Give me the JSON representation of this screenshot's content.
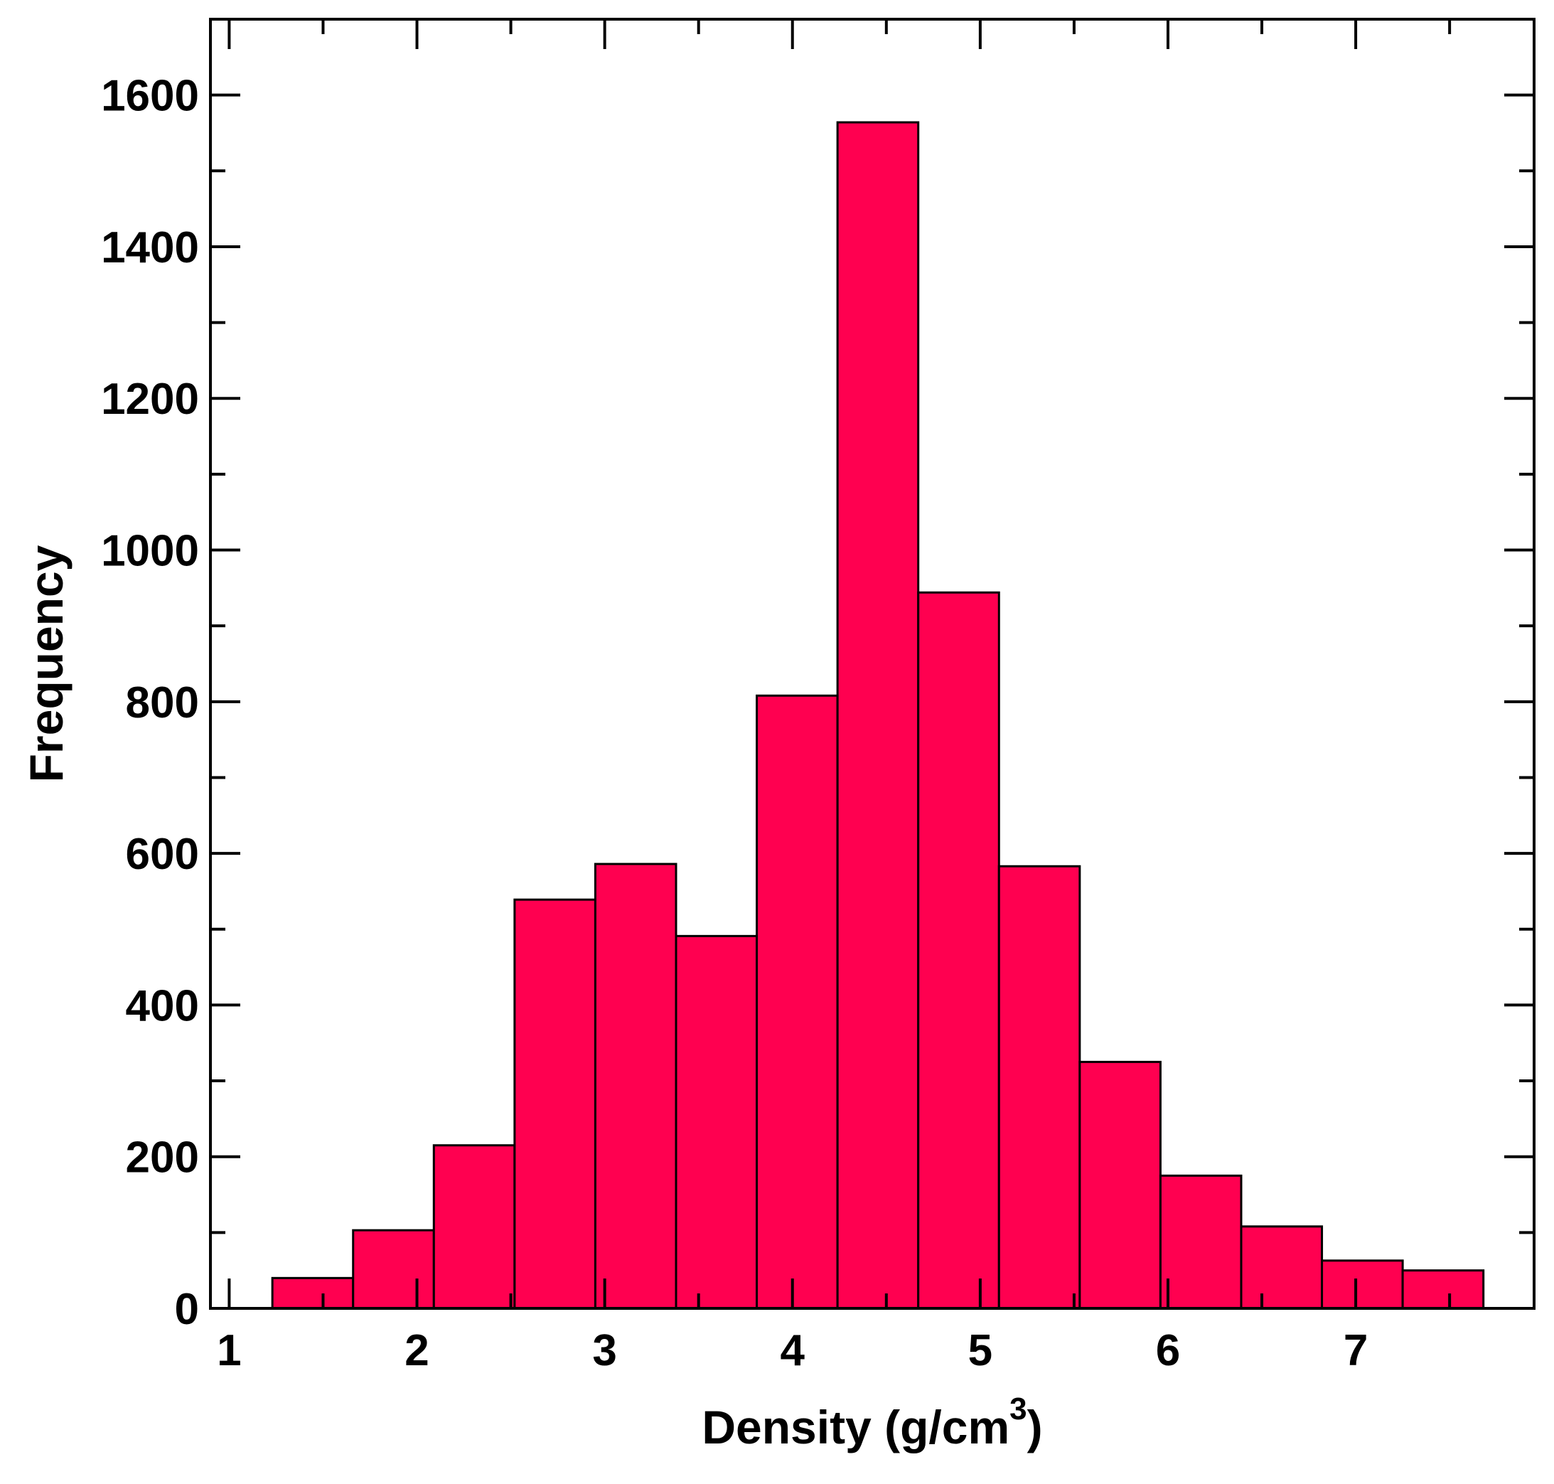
{
  "chart_data": {
    "type": "bar",
    "title": "",
    "xlabel": "Density (g/cm",
    "xlabel_superscript": "3",
    "xlabel_suffix": ")",
    "ylabel": "Frequency",
    "xlim": [
      0.9,
      7.95
    ],
    "ylim": [
      0,
      1700
    ],
    "xticks": [
      1,
      2,
      3,
      4,
      5,
      6,
      7
    ],
    "yticks": [
      0,
      200,
      400,
      600,
      800,
      1000,
      1200,
      1400,
      1600
    ],
    "grid": false,
    "bar_color": "#ff0050",
    "edge_color": "#000000",
    "bins": [
      {
        "x0": 1.23,
        "x1": 1.66,
        "value": 40
      },
      {
        "x0": 1.66,
        "x1": 2.09,
        "value": 103
      },
      {
        "x0": 2.09,
        "x1": 2.52,
        "value": 215
      },
      {
        "x0": 2.52,
        "x1": 2.95,
        "value": 539
      },
      {
        "x0": 2.95,
        "x1": 3.38,
        "value": 586
      },
      {
        "x0": 3.38,
        "x1": 3.81,
        "value": 491
      },
      {
        "x0": 3.81,
        "x1": 4.24,
        "value": 808
      },
      {
        "x0": 4.24,
        "x1": 4.67,
        "value": 1564
      },
      {
        "x0": 4.67,
        "x1": 5.1,
        "value": 944
      },
      {
        "x0": 5.1,
        "x1": 5.53,
        "value": 583
      },
      {
        "x0": 5.53,
        "x1": 5.96,
        "value": 325
      },
      {
        "x0": 5.96,
        "x1": 6.39,
        "value": 175
      },
      {
        "x0": 6.39,
        "x1": 6.82,
        "value": 108
      },
      {
        "x0": 6.82,
        "x1": 7.25,
        "value": 63
      },
      {
        "x0": 7.25,
        "x1": 7.68,
        "value": 50
      }
    ]
  }
}
